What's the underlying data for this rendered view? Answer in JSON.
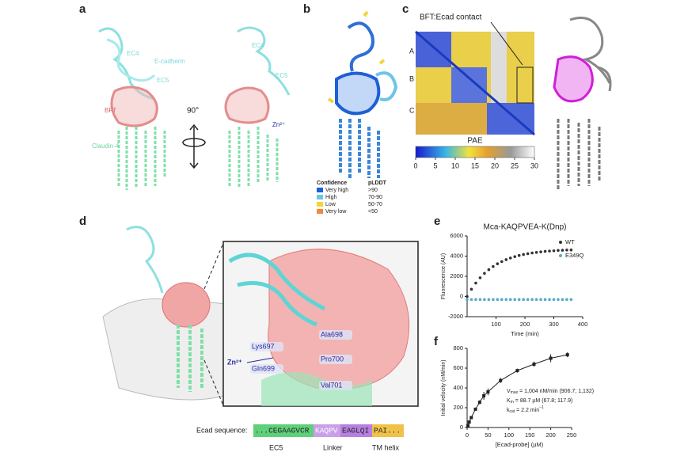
{
  "panels": {
    "a": {
      "label": "a",
      "texts": [
        "EC4",
        "E-cadherin",
        "EC5",
        "BFT",
        "90°",
        "Zn²⁺",
        "Claudin-4",
        "EC4",
        "EC5"
      ]
    },
    "b": {
      "label": "b",
      "legend": {
        "headers": [
          "Confidence",
          "pLDDT"
        ],
        "rows": [
          {
            "label": "Very high",
            "range": ">90",
            "color": "#1f5fd6"
          },
          {
            "label": "High",
            "range": "70-90",
            "color": "#6cc5e8"
          },
          {
            "label": "Low",
            "range": "50-70",
            "color": "#f2d43a"
          },
          {
            "label": "Very low",
            "range": "<50",
            "color": "#f08a3c"
          }
        ]
      }
    },
    "c": {
      "label": "c",
      "annotation": "BFT:Ecad contact",
      "blocks": [
        "A",
        "B",
        "C"
      ],
      "colorbar": {
        "label": "PAE",
        "ticks": [
          0,
          5,
          10,
          15,
          20,
          25,
          30
        ]
      }
    },
    "d": {
      "label": "d",
      "residues": [
        "Lys697",
        "Ala698",
        "Gln699",
        "Pro700",
        "Val701"
      ],
      "ion": "Zn²⁺",
      "sequence": {
        "label": "Ecad sequence:",
        "segments": [
          {
            "text": "...CEGAAGVCR",
            "color": "#5fd07a"
          },
          {
            "text": "KAQPV",
            "color": "#c9a0e8"
          },
          {
            "text": "EAGLQI",
            "color": "#b77fe0"
          },
          {
            "text": "PAI...",
            "color": "#f0c24a"
          }
        ],
        "regions": [
          "EC5",
          "Linker",
          "TM helix"
        ]
      }
    },
    "e": {
      "label": "e"
    },
    "f": {
      "label": "f"
    }
  },
  "chart_data": [
    {
      "type": "scatter",
      "title": "Mca-KAQPVEA-K(Dnp)",
      "x_label": "Time (min)",
      "y_label": "Fluorescence (AU)",
      "x": [
        0,
        15,
        30,
        45,
        60,
        75,
        90,
        105,
        120,
        135,
        150,
        165,
        180,
        195,
        210,
        225,
        240,
        255,
        270,
        285,
        300,
        315,
        330,
        345,
        360
      ],
      "series": [
        {
          "name": "WT",
          "color": "#333333",
          "values": [
            0,
            720,
            1330,
            1850,
            2290,
            2660,
            2970,
            3240,
            3460,
            3650,
            3810,
            3950,
            4060,
            4160,
            4240,
            4310,
            4370,
            4420,
            4470,
            4500,
            4530,
            4560,
            4580,
            4600,
            4610
          ]
        },
        {
          "name": "E349Q",
          "color": "#5aa9c8",
          "values": [
            -300,
            -300,
            -300,
            -300,
            -300,
            -300,
            -300,
            -300,
            -300,
            -300,
            -300,
            -300,
            -300,
            -300,
            -300,
            -300,
            -300,
            -300,
            -300,
            -300,
            -300,
            -300,
            -300,
            -300,
            -300
          ]
        }
      ],
      "xlim": [
        0,
        400
      ],
      "xticks": [
        100,
        200,
        300,
        400
      ],
      "ylim": [
        -2000,
        6000
      ],
      "yticks": [
        -2000,
        0,
        2000,
        4000,
        6000
      ]
    },
    {
      "type": "scatter",
      "x_label": "[Ecad-probe] (µM)",
      "y_label": "Initial velocity (nM/min)",
      "color": "#222222",
      "x": [
        2,
        5,
        10,
        20,
        30,
        40,
        50,
        80,
        120,
        160,
        200,
        240
      ],
      "values": [
        20,
        55,
        100,
        185,
        255,
        320,
        360,
        475,
        575,
        640,
        700,
        735
      ],
      "errors": [
        5,
        8,
        10,
        15,
        20,
        40,
        35,
        25,
        20,
        25,
        40,
        25
      ],
      "xlim": [
        0,
        250
      ],
      "xticks": [
        0,
        50,
        100,
        150,
        200,
        250
      ],
      "ylim": [
        0,
        800
      ],
      "yticks": [
        0,
        200,
        400,
        600,
        800
      ],
      "annotations": [
        {
          "text": "V",
          "sub": "max",
          "rest": " = 1,004 nM/min (906.7; 1,132)"
        },
        {
          "text": "K",
          "sub": "m",
          "rest": " = 88.7 µM (67.8; 117.9)"
        },
        {
          "text": "k",
          "sub": "cat",
          "rest": " = 2.2 min",
          "sup": "−1"
        }
      ]
    }
  ]
}
